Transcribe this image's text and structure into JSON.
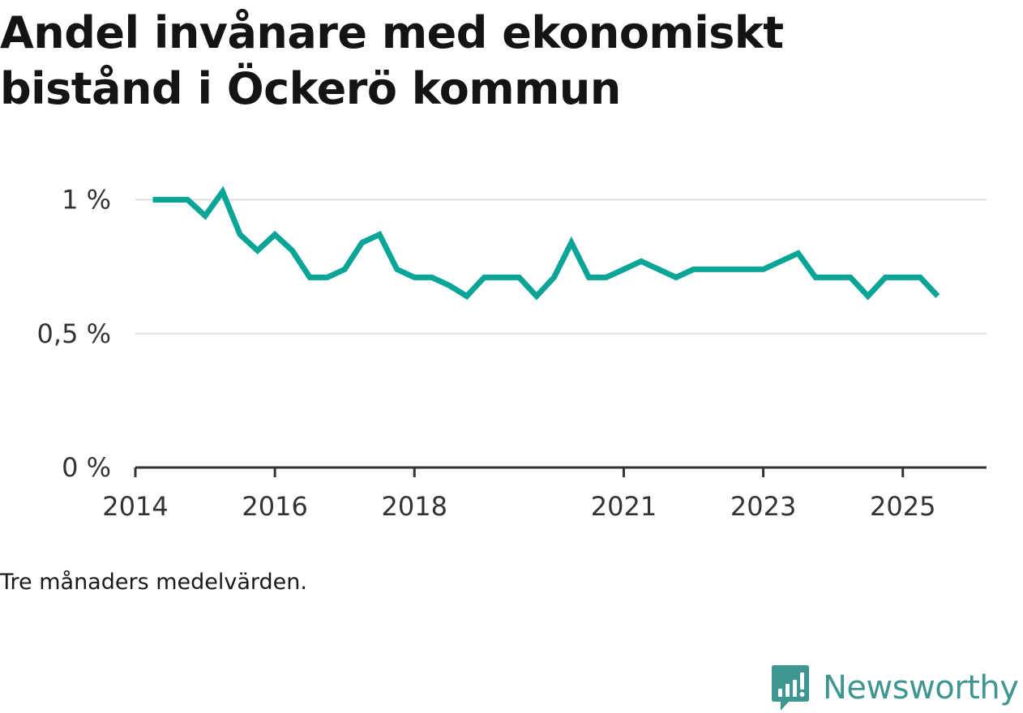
{
  "title": "Andel invånare med ekonomiskt bistånd i Öckerö kommun",
  "caption": "Tre månaders medelvärden.",
  "brand": {
    "name": "Newsworthy",
    "color": "#3f9590"
  },
  "chart_data": {
    "type": "line",
    "title": "Andel invånare med ekonomiskt bistånd i Öckerö kommun",
    "xlabel": "",
    "ylabel": "",
    "ylim": [
      0,
      1.05
    ],
    "xlim": [
      2014.0,
      2026.2
    ],
    "grid": true,
    "line_color": "#0aa597",
    "y_ticks": [
      {
        "value": 0,
        "label": "0 %"
      },
      {
        "value": 0.5,
        "label": "0,5 %"
      },
      {
        "value": 1,
        "label": "1 %"
      }
    ],
    "x_ticks": [
      {
        "value": 2014,
        "label": "2014"
      },
      {
        "value": 2016,
        "label": "2016"
      },
      {
        "value": 2018,
        "label": "2018"
      },
      {
        "value": 2021,
        "label": "2021"
      },
      {
        "value": 2023,
        "label": "2023"
      },
      {
        "value": 2025,
        "label": "2025"
      }
    ],
    "series": [
      {
        "name": "Andel invånare med ekonomiskt bistånd",
        "x": [
          2014.25,
          2014.5,
          2014.75,
          2015.0,
          2015.25,
          2015.5,
          2015.75,
          2016.0,
          2016.25,
          2016.5,
          2016.75,
          2017.0,
          2017.25,
          2017.5,
          2017.75,
          2018.0,
          2018.25,
          2018.5,
          2018.75,
          2019.0,
          2019.25,
          2019.5,
          2019.75,
          2020.0,
          2020.25,
          2020.5,
          2020.75,
          2021.0,
          2021.25,
          2021.5,
          2021.75,
          2022.0,
          2022.25,
          2022.5,
          2022.75,
          2023.0,
          2023.25,
          2023.5,
          2023.75,
          2024.0,
          2024.25,
          2024.5,
          2024.75,
          2025.0,
          2025.25,
          2025.5
        ],
        "values": [
          1.0,
          1.0,
          1.0,
          0.94,
          1.03,
          0.87,
          0.81,
          0.87,
          0.81,
          0.71,
          0.71,
          0.74,
          0.84,
          0.87,
          0.74,
          0.71,
          0.71,
          0.68,
          0.64,
          0.71,
          0.71,
          0.71,
          0.64,
          0.71,
          0.84,
          0.71,
          0.71,
          0.74,
          0.77,
          0.74,
          0.71,
          0.74,
          0.74,
          0.74,
          0.74,
          0.74,
          0.77,
          0.8,
          0.71,
          0.71,
          0.71,
          0.64,
          0.71,
          0.71,
          0.71,
          0.64
        ]
      }
    ]
  }
}
